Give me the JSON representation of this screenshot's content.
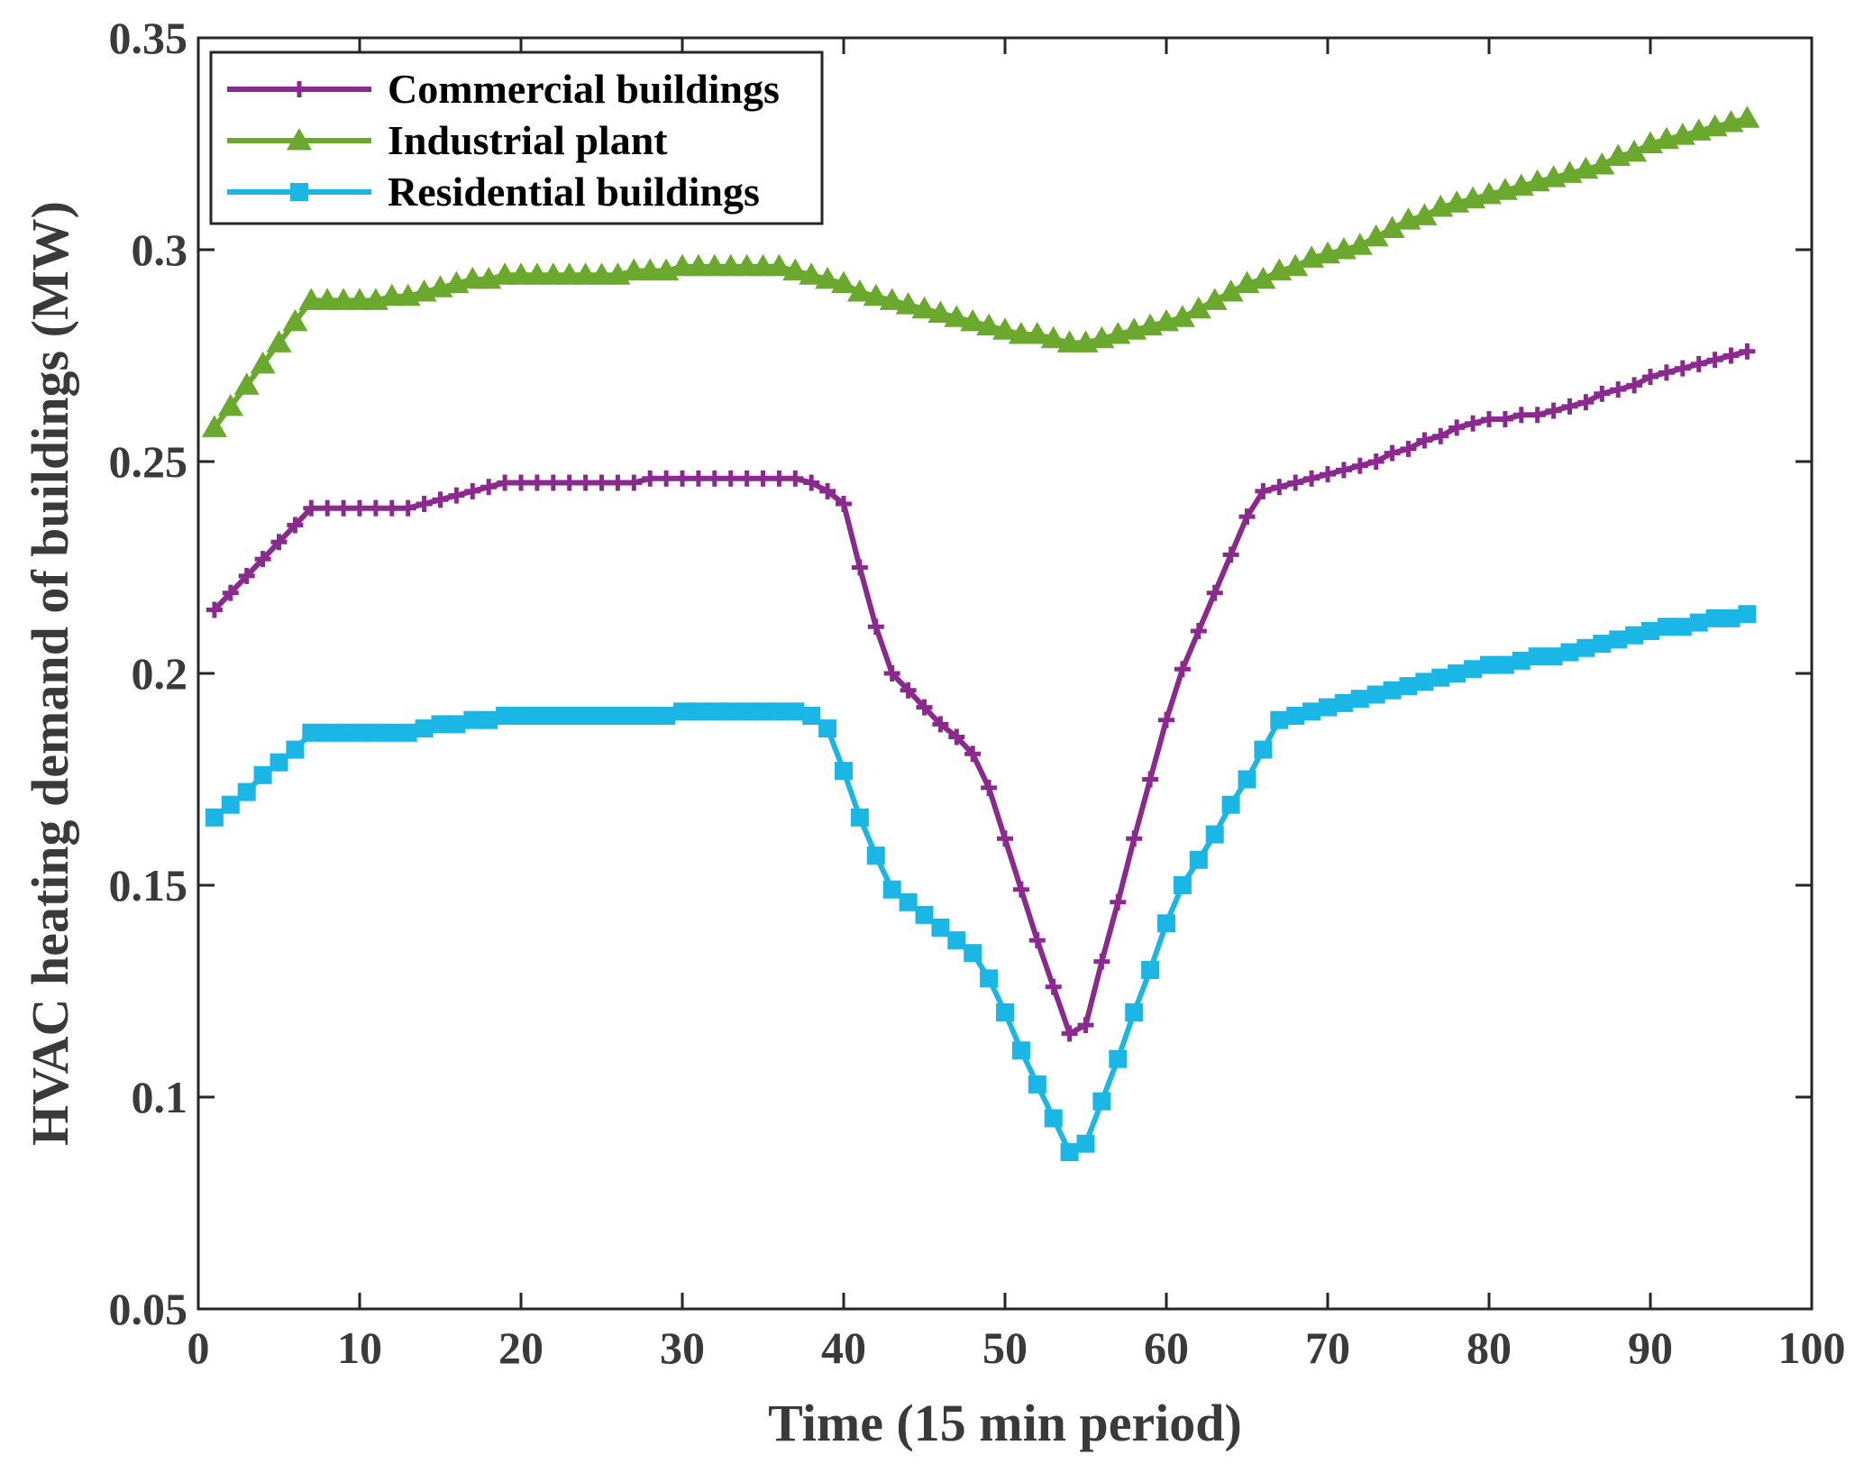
{
  "chart_data": {
    "type": "line",
    "title": "",
    "xlabel": "Time (15 min period)",
    "ylabel": "HVAC heating demand of buildings (MW)",
    "xlim": [
      0,
      100
    ],
    "ylim": [
      0.05,
      0.35
    ],
    "xticks": [
      0,
      10,
      20,
      30,
      40,
      50,
      60,
      70,
      80,
      90,
      100
    ],
    "xtick_labels": [
      "0",
      "10",
      "20",
      "30",
      "40",
      "50",
      "60",
      "70",
      "80",
      "90",
      "100"
    ],
    "yticks": [
      0.05,
      0.1,
      0.15,
      0.2,
      0.25,
      0.3,
      0.35
    ],
    "ytick_labels": [
      "0.05",
      "0.1",
      "0.15",
      "0.2",
      "0.25",
      "0.3",
      "0.35"
    ],
    "grid": false,
    "legend_position": "top-left",
    "x": [
      1,
      2,
      3,
      4,
      5,
      6,
      7,
      8,
      9,
      10,
      11,
      12,
      13,
      14,
      15,
      16,
      17,
      18,
      19,
      20,
      21,
      22,
      23,
      24,
      25,
      26,
      27,
      28,
      29,
      30,
      31,
      32,
      33,
      34,
      35,
      36,
      37,
      38,
      39,
      40,
      41,
      42,
      43,
      44,
      45,
      46,
      47,
      48,
      49,
      50,
      51,
      52,
      53,
      54,
      55,
      56,
      57,
      58,
      59,
      60,
      61,
      62,
      63,
      64,
      65,
      66,
      67,
      68,
      69,
      70,
      71,
      72,
      73,
      74,
      75,
      76,
      77,
      78,
      79,
      80,
      81,
      82,
      83,
      84,
      85,
      86,
      87,
      88,
      89,
      90,
      91,
      92,
      93,
      94,
      95,
      96
    ],
    "series": [
      {
        "name": "Commercial buildings",
        "color": "#8b2a8e",
        "marker": "plus",
        "values": [
          0.215,
          0.219,
          0.223,
          0.227,
          0.231,
          0.235,
          0.239,
          0.239,
          0.239,
          0.239,
          0.239,
          0.239,
          0.239,
          0.24,
          0.241,
          0.242,
          0.243,
          0.244,
          0.245,
          0.245,
          0.245,
          0.245,
          0.245,
          0.245,
          0.245,
          0.245,
          0.245,
          0.246,
          0.246,
          0.246,
          0.246,
          0.246,
          0.246,
          0.246,
          0.246,
          0.246,
          0.246,
          0.245,
          0.243,
          0.24,
          0.225,
          0.211,
          0.2,
          0.196,
          0.192,
          0.188,
          0.185,
          0.181,
          0.173,
          0.161,
          0.149,
          0.137,
          0.126,
          0.115,
          0.117,
          0.132,
          0.146,
          0.161,
          0.175,
          0.189,
          0.201,
          0.21,
          0.219,
          0.228,
          0.237,
          0.243,
          0.244,
          0.245,
          0.246,
          0.247,
          0.248,
          0.249,
          0.25,
          0.252,
          0.253,
          0.255,
          0.256,
          0.258,
          0.259,
          0.26,
          0.26,
          0.261,
          0.261,
          0.262,
          0.263,
          0.264,
          0.266,
          0.267,
          0.268,
          0.27,
          0.271,
          0.272,
          0.273,
          0.274,
          0.275,
          0.276
        ]
      },
      {
        "name": "Industrial plant",
        "color": "#6aa82e",
        "marker": "triangle",
        "values": [
          0.258,
          0.263,
          0.268,
          0.273,
          0.278,
          0.283,
          0.288,
          0.288,
          0.288,
          0.288,
          0.288,
          0.289,
          0.289,
          0.29,
          0.291,
          0.292,
          0.293,
          0.293,
          0.294,
          0.294,
          0.294,
          0.294,
          0.294,
          0.294,
          0.294,
          0.294,
          0.295,
          0.295,
          0.295,
          0.296,
          0.296,
          0.296,
          0.296,
          0.296,
          0.296,
          0.296,
          0.295,
          0.294,
          0.293,
          0.292,
          0.29,
          0.289,
          0.288,
          0.287,
          0.286,
          0.285,
          0.284,
          0.283,
          0.282,
          0.281,
          0.28,
          0.28,
          0.279,
          0.278,
          0.278,
          0.279,
          0.28,
          0.281,
          0.282,
          0.283,
          0.284,
          0.286,
          0.288,
          0.29,
          0.292,
          0.293,
          0.295,
          0.296,
          0.298,
          0.299,
          0.3,
          0.301,
          0.303,
          0.305,
          0.307,
          0.308,
          0.31,
          0.311,
          0.312,
          0.313,
          0.314,
          0.315,
          0.316,
          0.317,
          0.318,
          0.319,
          0.32,
          0.322,
          0.323,
          0.325,
          0.326,
          0.327,
          0.328,
          0.329,
          0.33,
          0.331
        ]
      },
      {
        "name": "Residential buildings",
        "color": "#1ab7e6",
        "marker": "square",
        "values": [
          0.166,
          0.169,
          0.172,
          0.176,
          0.179,
          0.182,
          0.186,
          0.186,
          0.186,
          0.186,
          0.186,
          0.186,
          0.186,
          0.187,
          0.188,
          0.188,
          0.189,
          0.189,
          0.19,
          0.19,
          0.19,
          0.19,
          0.19,
          0.19,
          0.19,
          0.19,
          0.19,
          0.19,
          0.19,
          0.191,
          0.191,
          0.191,
          0.191,
          0.191,
          0.191,
          0.191,
          0.191,
          0.19,
          0.187,
          0.177,
          0.166,
          0.157,
          0.149,
          0.146,
          0.143,
          0.14,
          0.137,
          0.134,
          0.128,
          0.12,
          0.111,
          0.103,
          0.095,
          0.087,
          0.089,
          0.099,
          0.109,
          0.12,
          0.13,
          0.141,
          0.15,
          0.156,
          0.162,
          0.169,
          0.175,
          0.182,
          0.189,
          0.19,
          0.191,
          0.192,
          0.193,
          0.194,
          0.195,
          0.196,
          0.197,
          0.198,
          0.199,
          0.2,
          0.201,
          0.202,
          0.202,
          0.203,
          0.204,
          0.204,
          0.205,
          0.206,
          0.207,
          0.208,
          0.209,
          0.21,
          0.211,
          0.211,
          0.212,
          0.213,
          0.213,
          0.214
        ]
      }
    ]
  }
}
